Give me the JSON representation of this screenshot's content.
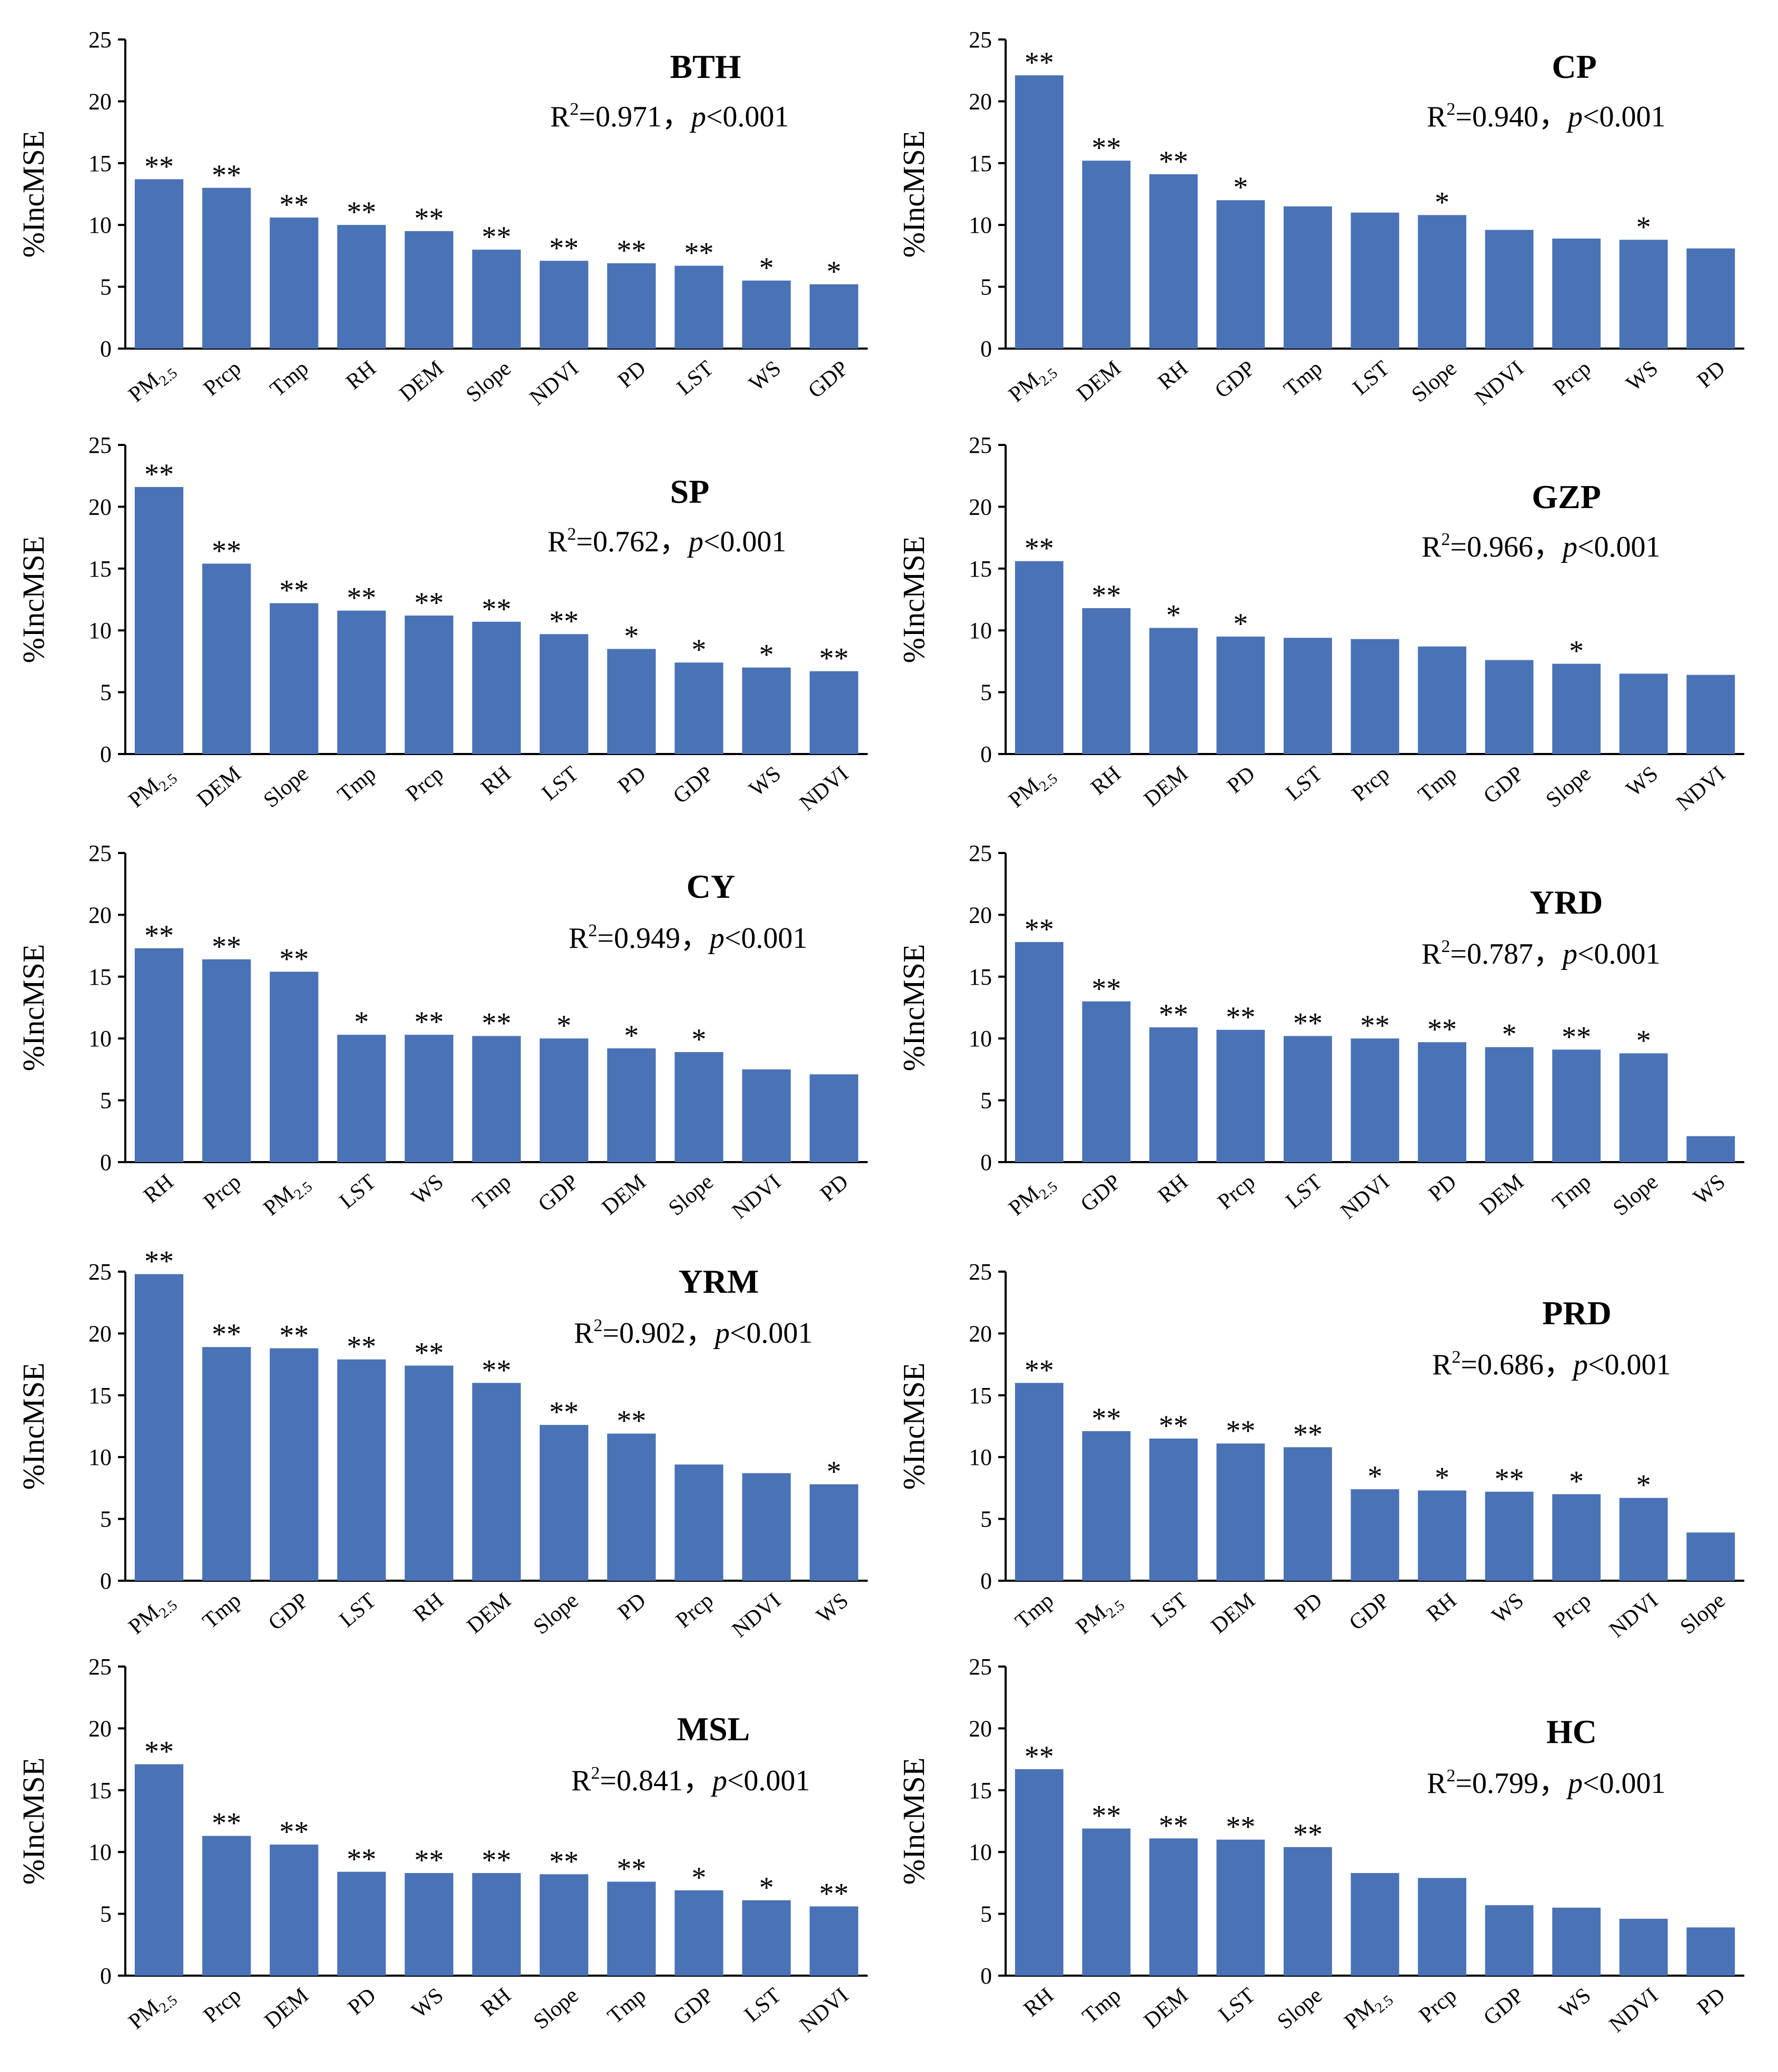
{
  "colors": {
    "bar": "#4a72b6",
    "axis": "#000000"
  },
  "chart_data": [
    {
      "type": "bar",
      "title": "BTH",
      "r2_prefix": "R",
      "r2_sup": "2",
      "r2_value": "=0.971，",
      "p_label": "p",
      "p_value": "<0.001",
      "ylabel": "%IncMSE",
      "ylim": [
        0,
        25
      ],
      "yticks": [
        "0",
        "5",
        "10",
        "15",
        "20",
        "25"
      ],
      "categories": [
        "PM2.5",
        "Prcp",
        "Tmp",
        "RH",
        "DEM",
        "Slope",
        "NDVI",
        "PD",
        "LST",
        "WS",
        "GDP"
      ],
      "values": [
        13.7,
        13.0,
        10.6,
        10.0,
        9.5,
        8.0,
        7.1,
        6.9,
        6.7,
        5.5,
        5.2
      ],
      "significance": [
        "**",
        "**",
        "**",
        "**",
        "**",
        "**",
        "**",
        "**",
        "**",
        "*",
        "*"
      ]
    },
    {
      "type": "bar",
      "title": "CP",
      "r2_prefix": "R",
      "r2_sup": "2",
      "r2_value": "=0.940，",
      "p_label": "p",
      "p_value": "<0.001",
      "ylabel": "%IncMSE",
      "ylim": [
        0,
        25
      ],
      "yticks": [
        "0",
        "5",
        "10",
        "15",
        "20",
        "25"
      ],
      "categories": [
        "PM2.5",
        "DEM",
        "RH",
        "GDP",
        "Tmp",
        "LST",
        "Slope",
        "NDVI",
        "Prcp",
        "WS",
        "PD"
      ],
      "values": [
        22.1,
        15.2,
        14.1,
        12.0,
        11.5,
        11.0,
        10.8,
        9.6,
        8.9,
        8.8,
        8.1
      ],
      "significance": [
        "**",
        "**",
        "**",
        "*",
        "",
        "",
        "*",
        "",
        "",
        "*",
        ""
      ]
    },
    {
      "type": "bar",
      "title": "SP",
      "r2_prefix": "R",
      "r2_sup": "2",
      "r2_value": "=0.762，",
      "p_label": "p",
      "p_value": "<0.001",
      "ylabel": "%IncMSE",
      "ylim": [
        0,
        25
      ],
      "yticks": [
        "0",
        "5",
        "10",
        "15",
        "20",
        "25"
      ],
      "categories": [
        "PM2.5",
        "DEM",
        "Slope",
        "Tmp",
        "Prcp",
        "RH",
        "LST",
        "PD",
        "GDP",
        "WS",
        "NDVI"
      ],
      "values": [
        21.6,
        15.4,
        12.2,
        11.6,
        11.2,
        10.7,
        9.7,
        8.5,
        7.4,
        7.0,
        6.7
      ],
      "significance": [
        "**",
        "**",
        "**",
        "**",
        "**",
        "**",
        "**",
        "*",
        "*",
        "*",
        "**"
      ]
    },
    {
      "type": "bar",
      "title": "GZP",
      "r2_prefix": "R",
      "r2_sup": "2",
      "r2_value": "=0.966，",
      "p_label": "p",
      "p_value": "<0.001",
      "ylabel": "%IncMSE",
      "ylim": [
        0,
        25
      ],
      "yticks": [
        "0",
        "5",
        "10",
        "15",
        "20",
        "25"
      ],
      "categories": [
        "PM2.5",
        "RH",
        "DEM",
        "PD",
        "LST",
        "Prcp",
        "Tmp",
        "GDP",
        "Slope",
        "WS",
        "NDVI"
      ],
      "values": [
        15.6,
        11.8,
        10.2,
        9.5,
        9.4,
        9.3,
        8.7,
        7.6,
        7.3,
        6.5,
        6.4
      ],
      "significance": [
        "**",
        "**",
        "*",
        "*",
        "",
        "",
        "",
        "",
        "*",
        "",
        ""
      ]
    },
    {
      "type": "bar",
      "title": "CY",
      "r2_prefix": "R",
      "r2_sup": "2",
      "r2_value": "=0.949，",
      "p_label": "p",
      "p_value": "<0.001",
      "ylabel": "%IncMSE",
      "ylim": [
        0,
        25
      ],
      "yticks": [
        "0",
        "5",
        "10",
        "15",
        "20",
        "25"
      ],
      "categories": [
        "RH",
        "Prcp",
        "PM2.5",
        "LST",
        "WS",
        "Tmp",
        "GDP",
        "DEM",
        "Slope",
        "NDVI",
        "PD"
      ],
      "values": [
        17.3,
        16.4,
        15.4,
        10.3,
        10.3,
        10.2,
        10.0,
        9.2,
        8.9,
        7.5,
        7.1
      ],
      "significance": [
        "**",
        "**",
        "**",
        "*",
        "**",
        "**",
        "*",
        "*",
        "*",
        "",
        ""
      ]
    },
    {
      "type": "bar",
      "title": "YRD",
      "r2_prefix": "R",
      "r2_sup": "2",
      "r2_value": "=0.787，",
      "p_label": "p",
      "p_value": "<0.001",
      "ylabel": "%IncMSE",
      "ylim": [
        0,
        25
      ],
      "yticks": [
        "0",
        "5",
        "10",
        "15",
        "20",
        "25"
      ],
      "categories": [
        "PM2.5",
        "GDP",
        "RH",
        "Prcp",
        "LST",
        "NDVI",
        "PD",
        "DEM",
        "Tmp",
        "Slope",
        "WS"
      ],
      "values": [
        17.8,
        13.0,
        10.9,
        10.7,
        10.2,
        10.0,
        9.7,
        9.3,
        9.1,
        8.8,
        2.1
      ],
      "significance": [
        "**",
        "**",
        "**",
        "**",
        "**",
        "**",
        "**",
        "*",
        "**",
        "*",
        ""
      ]
    },
    {
      "type": "bar",
      "title": "YRM",
      "r2_prefix": "R",
      "r2_sup": "2",
      "r2_value": "=0.902，",
      "p_label": "p",
      "p_value": "<0.001",
      "ylabel": "%IncMSE",
      "ylim": [
        0,
        25
      ],
      "yticks": [
        "0",
        "5",
        "10",
        "15",
        "20",
        "25"
      ],
      "categories": [
        "PM2.5",
        "Tmp",
        "GDP",
        "LST",
        "RH",
        "DEM",
        "Slope",
        "PD",
        "Prcp",
        "NDVI",
        "WS"
      ],
      "values": [
        24.8,
        18.9,
        18.8,
        17.9,
        17.4,
        16.0,
        12.6,
        11.9,
        9.4,
        8.7,
        7.8
      ],
      "significance": [
        "**",
        "**",
        "**",
        "**",
        "**",
        "**",
        "**",
        "**",
        "",
        "",
        "*"
      ]
    },
    {
      "type": "bar",
      "title": "PRD",
      "r2_prefix": "R",
      "r2_sup": "2",
      "r2_value": "=0.686，",
      "p_label": "p",
      "p_value": "<0.001",
      "ylabel": "%IncMSE",
      "ylim": [
        0,
        25
      ],
      "yticks": [
        "0",
        "5",
        "10",
        "15",
        "20",
        "25"
      ],
      "categories": [
        "Tmp",
        "PM2.5",
        "LST",
        "DEM",
        "PD",
        "GDP",
        "RH",
        "WS",
        "Prcp",
        "NDVI",
        "Slope"
      ],
      "values": [
        16.0,
        12.1,
        11.5,
        11.1,
        10.8,
        7.4,
        7.3,
        7.2,
        7.0,
        6.7,
        3.9
      ],
      "significance": [
        "**",
        "**",
        "**",
        "**",
        "**",
        "*",
        "*",
        "**",
        "*",
        "*",
        ""
      ]
    },
    {
      "type": "bar",
      "title": "MSL",
      "r2_prefix": "R",
      "r2_sup": "2",
      "r2_value": "=0.841，",
      "p_label": "p",
      "p_value": "<0.001",
      "ylabel": "%IncMSE",
      "ylim": [
        0,
        25
      ],
      "yticks": [
        "0",
        "5",
        "10",
        "15",
        "20",
        "25"
      ],
      "categories": [
        "PM2.5",
        "Prcp",
        "DEM",
        "PD",
        "WS",
        "RH",
        "Slope",
        "Tmp",
        "GDP",
        "LST",
        "NDVI"
      ],
      "values": [
        17.1,
        11.3,
        10.6,
        8.4,
        8.3,
        8.3,
        8.2,
        7.6,
        6.9,
        6.1,
        5.6
      ],
      "significance": [
        "**",
        "**",
        "**",
        "**",
        "**",
        "**",
        "**",
        "**",
        "*",
        "*",
        "**"
      ]
    },
    {
      "type": "bar",
      "title": "HC",
      "r2_prefix": "R",
      "r2_sup": "2",
      "r2_value": "=0.799，",
      "p_label": "p",
      "p_value": "<0.001",
      "ylabel": "%IncMSE",
      "ylim": [
        0,
        25
      ],
      "yticks": [
        "0",
        "5",
        "10",
        "15",
        "20",
        "25"
      ],
      "categories": [
        "RH",
        "Tmp",
        "DEM",
        "LST",
        "Slope",
        "PM2.5",
        "Prcp",
        "GDP",
        "WS",
        "NDVI",
        "PD"
      ],
      "values": [
        16.7,
        11.9,
        11.1,
        11.0,
        10.4,
        8.3,
        7.9,
        5.7,
        5.5,
        4.6,
        3.9
      ],
      "significance": [
        "**",
        "**",
        "**",
        "**",
        "**",
        "",
        "",
        "",
        "",
        "",
        ""
      ]
    }
  ]
}
